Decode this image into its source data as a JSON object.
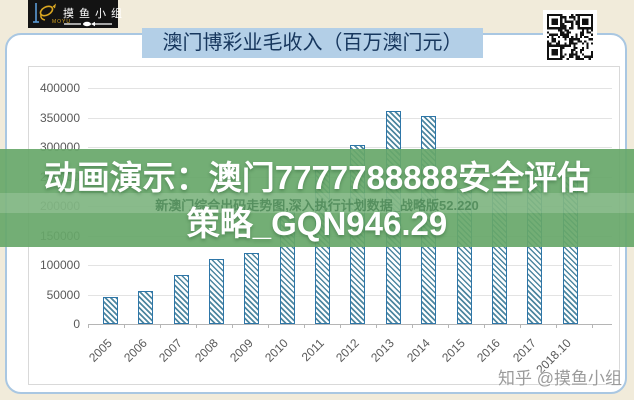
{
  "branding": {
    "logo_text": "摸鱼小组",
    "logo_sub": "MOYU"
  },
  "header": {
    "title": "澳门博彩业毛收入（百万澳门元）"
  },
  "overlay": {
    "line1": "动画演示：澳门7777788888安全评估",
    "line2": "策略_GQN946.29",
    "faint_line": "新澳门综合出码走势图,深入执行计划数据_战略版52.220"
  },
  "watermark": {
    "text": "知乎 @摸鱼小组"
  },
  "chart_data": {
    "type": "bar",
    "title": "澳门博彩业毛收入（百万澳门元）",
    "categories": [
      "2005",
      "2006",
      "2007",
      "2008",
      "2009",
      "2010",
      "2011",
      "2012",
      "2013",
      "2014",
      "2015",
      "2016",
      "2017",
      "2018.10"
    ],
    "values": [
      46000,
      56000,
      83000,
      110000,
      120000,
      189000,
      268000,
      304000,
      361000,
      352000,
      231000,
      223000,
      266000,
      250000
    ],
    "xlabel": "",
    "ylabel": "",
    "ylim": [
      0,
      400000
    ],
    "ytick_step": 50000,
    "yticks": [
      "400000",
      "350000",
      "300000",
      "250000",
      "200000",
      "150000",
      "100000",
      "50000",
      "0"
    ],
    "grid": true,
    "legend": false,
    "bar_style": "diagonal-hatch"
  },
  "colors": {
    "page_bg": "#f1ebda",
    "card_bg": "#ffffff",
    "card_border": "#a9c7e2",
    "frame_border": "#d9d9d9",
    "gridline": "#e3e3e3",
    "axis_line": "#b5b5b5",
    "axis_text": "#595959",
    "bar_border": "#2e76a8",
    "bar_hatch": "#4e87a0",
    "title_bg": "#b3cfe7",
    "title_text": "#17375e",
    "band_green": "rgba(103,167,105,0.92)",
    "band_strip": "rgba(255,255,255,0.16)",
    "faint_text": "#2e6e3c",
    "watermark": "#9b9b9b",
    "logo_bg": "#131313",
    "logo_gold": "#d9a621",
    "logo_blue": "#5b9bd5"
  }
}
